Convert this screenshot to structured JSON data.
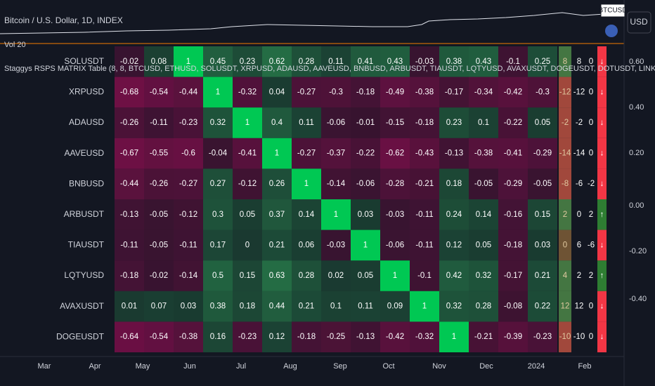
{
  "header": {
    "symbol": "Bitcoin / U.S. Dollar, 1D, INDEX",
    "volume": "Vol 20",
    "ticker_badge": "BTCUSD",
    "currency": "USD"
  },
  "indicator_title": "Staggys RSPS MATRIX Table (8, 8, BTCUSD, ETHUSD, SOLUSDT, XRPUSD, ADAUSD, AAVEUSD, BNBUSD, ARBUSDT, TIAUSDT, LQTYUSD, AVAXUSDT, DOGEUSDT, DOTUSDT, LINKUSD, MATICUSDT)",
  "table": {
    "rows": [
      {
        "label": "SOLUSDT",
        "values": [
          -0.02,
          0.08,
          1,
          0.45,
          0.23,
          0.62,
          0.28,
          0.11,
          0.41,
          0.43,
          -0.03,
          0.38,
          0.43,
          -0.1,
          0.25
        ],
        "score": 8,
        "long": 8,
        "short": 0,
        "signal": "↓"
      },
      {
        "label": "XRPUSD",
        "values": [
          -0.68,
          -0.54,
          -0.44,
          1,
          -0.32,
          0.04,
          -0.27,
          -0.3,
          -0.18,
          -0.49,
          -0.38,
          -0.17,
          -0.34,
          -0.42,
          -0.3
        ],
        "score": -12,
        "long": -12,
        "short": 0,
        "signal": "↓"
      },
      {
        "label": "ADAUSD",
        "values": [
          -0.26,
          -0.11,
          -0.23,
          0.32,
          1,
          0.4,
          0.11,
          -0.06,
          -0.01,
          -0.15,
          -0.18,
          0.23,
          0.1,
          -0.22,
          0.05
        ],
        "score": -2,
        "long": -2,
        "short": 0,
        "signal": "↓"
      },
      {
        "label": "AAVEUSD",
        "values": [
          -0.67,
          -0.55,
          -0.6,
          -0.04,
          -0.41,
          1,
          -0.27,
          -0.37,
          -0.22,
          -0.62,
          -0.43,
          -0.13,
          -0.38,
          -0.41,
          -0.29
        ],
        "score": -14,
        "long": -14,
        "short": 0,
        "signal": "↓"
      },
      {
        "label": "BNBUSD",
        "values": [
          -0.44,
          -0.26,
          -0.27,
          0.27,
          -0.12,
          0.26,
          1,
          -0.14,
          -0.06,
          -0.28,
          -0.21,
          0.18,
          -0.05,
          -0.29,
          -0.05
        ],
        "score": -8,
        "long": -6,
        "short": -2,
        "signal": "↓"
      },
      {
        "label": "ARBUSDT",
        "values": [
          -0.13,
          -0.05,
          -0.12,
          0.3,
          0.05,
          0.37,
          0.14,
          1,
          0.03,
          -0.03,
          -0.11,
          0.24,
          0.14,
          -0.16,
          0.15
        ],
        "score": 2,
        "long": 0,
        "short": 2,
        "signal": "↑"
      },
      {
        "label": "TIAUSDT",
        "values": [
          -0.11,
          -0.05,
          -0.11,
          0.17,
          0,
          0.21,
          0.06,
          -0.03,
          1,
          -0.06,
          -0.11,
          0.12,
          0.05,
          -0.18,
          0.03
        ],
        "score": 0,
        "long": 6,
        "short": -6,
        "signal": "↓"
      },
      {
        "label": "LQTYUSD",
        "values": [
          -0.18,
          -0.02,
          -0.14,
          0.5,
          0.15,
          0.63,
          0.28,
          0.02,
          0.05,
          1,
          -0.1,
          0.42,
          0.32,
          -0.17,
          0.21
        ],
        "score": 4,
        "long": 2,
        "short": 2,
        "signal": "↑"
      },
      {
        "label": "AVAXUSDT",
        "values": [
          0.01,
          0.07,
          0.03,
          0.38,
          0.18,
          0.44,
          0.21,
          0.1,
          0.11,
          0.09,
          1,
          0.32,
          0.28,
          -0.08,
          0.22
        ],
        "score": 12,
        "long": 12,
        "short": 0,
        "signal": "↓"
      },
      {
        "label": "DOGEUSDT",
        "values": [
          -0.64,
          -0.54,
          -0.38,
          0.16,
          -0.23,
          0.12,
          -0.18,
          -0.25,
          -0.13,
          -0.42,
          -0.32,
          1,
          -0.21,
          -0.39,
          -0.23
        ],
        "score": -10,
        "long": -10,
        "short": 0,
        "signal": "↓"
      }
    ]
  },
  "price_axis": [
    "0.60",
    "0.40",
    "0.20",
    "0.00",
    "-0.20",
    "-0.40"
  ],
  "time_axis": [
    "Mar",
    "Apr",
    "May",
    "Jun",
    "Jul",
    "Aug",
    "Sep",
    "Oct",
    "Nov",
    "Dec",
    "2024",
    "Feb"
  ]
}
